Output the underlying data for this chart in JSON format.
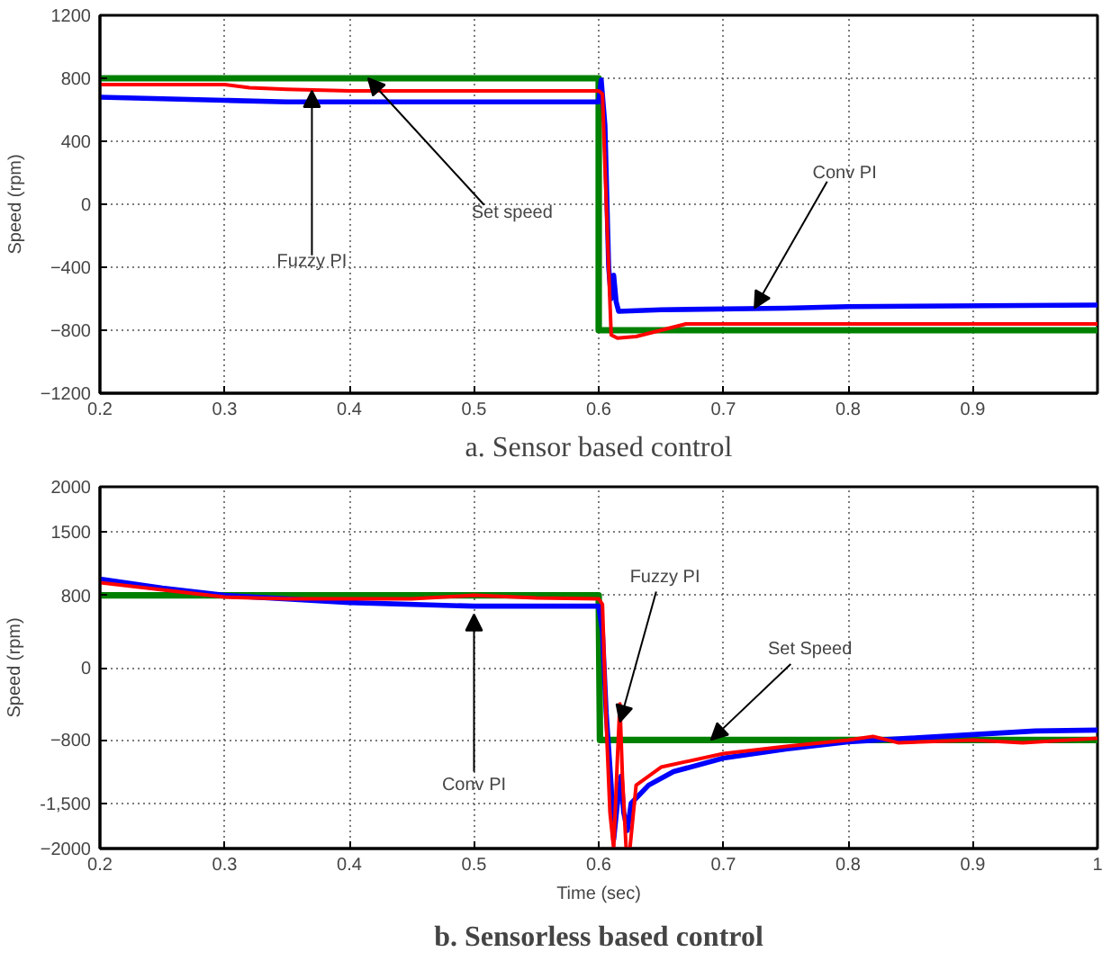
{
  "chart_data": [
    {
      "type": "line",
      "title": "a. Sensor based control",
      "ylabel": "Speed (rpm)",
      "xlim": [
        0.2,
        1.0
      ],
      "ylim": [
        -1200,
        1200
      ],
      "xticks": [
        0.2,
        0.3,
        0.4,
        0.5,
        0.6,
        0.7,
        0.8,
        0.9
      ],
      "yticks": [
        -1200,
        -800,
        -400,
        0,
        400,
        800,
        1200
      ],
      "grid": true,
      "line_style": "solid",
      "series": [
        {
          "color": "#008000",
          "x": [
            0.2,
            0.6,
            0.6,
            1.0
          ],
          "values": [
            800,
            800,
            -800,
            -800
          ]
        },
        {
          "color": "#0000ff",
          "x": [
            0.2,
            0.25,
            0.3,
            0.35,
            0.6,
            0.602,
            0.605,
            0.608,
            0.61,
            0.612,
            0.614,
            0.616,
            0.65,
            0.75,
            0.8,
            1.0
          ],
          "values": [
            680,
            670,
            660,
            650,
            650,
            790,
            500,
            -400,
            -600,
            -450,
            -620,
            -680,
            -670,
            -660,
            -650,
            -640
          ]
        },
        {
          "color": "#ff0000",
          "x": [
            0.2,
            0.3,
            0.32,
            0.35,
            0.4,
            0.6,
            0.603,
            0.607,
            0.61,
            0.615,
            0.63,
            0.65,
            0.67,
            1.0
          ],
          "values": [
            760,
            760,
            740,
            730,
            720,
            720,
            700,
            -200,
            -830,
            -850,
            -840,
            -800,
            -760,
            -760
          ]
        }
      ],
      "annotations": [
        {
          "text": "Fuzzy PI",
          "x": 0.37,
          "y": 720
        },
        {
          "text": "Set speed",
          "x": 0.415,
          "y": 800
        },
        {
          "text": "Conv PI",
          "x": 0.725,
          "y": -660
        }
      ]
    },
    {
      "type": "line",
      "title": "b. Sensorless based control",
      "xlabel": "Time (sec)",
      "ylabel": "Speed (rpm)",
      "xlim": [
        0.2,
        1.0
      ],
      "ylim": [
        -2000,
        2000
      ],
      "xticks": [
        0.2,
        0.3,
        0.4,
        0.5,
        0.6,
        0.7,
        0.8,
        0.9,
        1
      ],
      "yticks": [
        -2000,
        {
          "value": -1500,
          "label": "-1,500"
        },
        -800,
        0,
        800,
        1500,
        2000
      ],
      "grid": true,
      "line_style": "solid",
      "series": [
        {
          "color": "#008000",
          "x": [
            0.2,
            0.6,
            0.601,
            1.0
          ],
          "values": [
            800,
            800,
            -800,
            -800
          ]
        },
        {
          "color": "#0000ff",
          "x": [
            0.2,
            0.25,
            0.3,
            0.4,
            0.5,
            0.6,
            0.603,
            0.606,
            0.61,
            0.612,
            0.615,
            0.618,
            0.62,
            0.623,
            0.626,
            0.64,
            0.66,
            0.7,
            0.75,
            0.8,
            0.85,
            0.9,
            0.95,
            1.0
          ],
          "values": [
            980,
            880,
            800,
            720,
            680,
            680,
            400,
            -500,
            -1300,
            -1900,
            -1500,
            -1200,
            -1600,
            -1800,
            -1500,
            -1300,
            -1150,
            -1000,
            -900,
            -820,
            -780,
            -740,
            -700,
            -690
          ]
        },
        {
          "color": "#ff0000",
          "x": [
            0.2,
            0.25,
            0.3,
            0.35,
            0.45,
            0.5,
            0.55,
            0.6,
            0.603,
            0.606,
            0.609,
            0.612,
            0.615,
            0.617,
            0.619,
            0.622,
            0.625,
            0.63,
            0.65,
            0.7,
            0.75,
            0.8,
            0.82,
            0.84,
            0.9,
            0.94,
            1.0
          ],
          "values": [
            940,
            860,
            780,
            760,
            760,
            800,
            770,
            760,
            700,
            -600,
            -1600,
            -2000,
            -1000,
            -400,
            -1200,
            -2000,
            -2000,
            -1300,
            -1100,
            -950,
            -870,
            -800,
            -760,
            -830,
            -800,
            -830,
            -780
          ]
        }
      ],
      "annotations": [
        {
          "text": "Conv PI",
          "x": 0.5,
          "y": 590
        },
        {
          "text": "Fuzzy PI",
          "x": 0.617,
          "y": -600
        },
        {
          "text": "Set Speed",
          "x": 0.69,
          "y": -800
        }
      ]
    }
  ]
}
